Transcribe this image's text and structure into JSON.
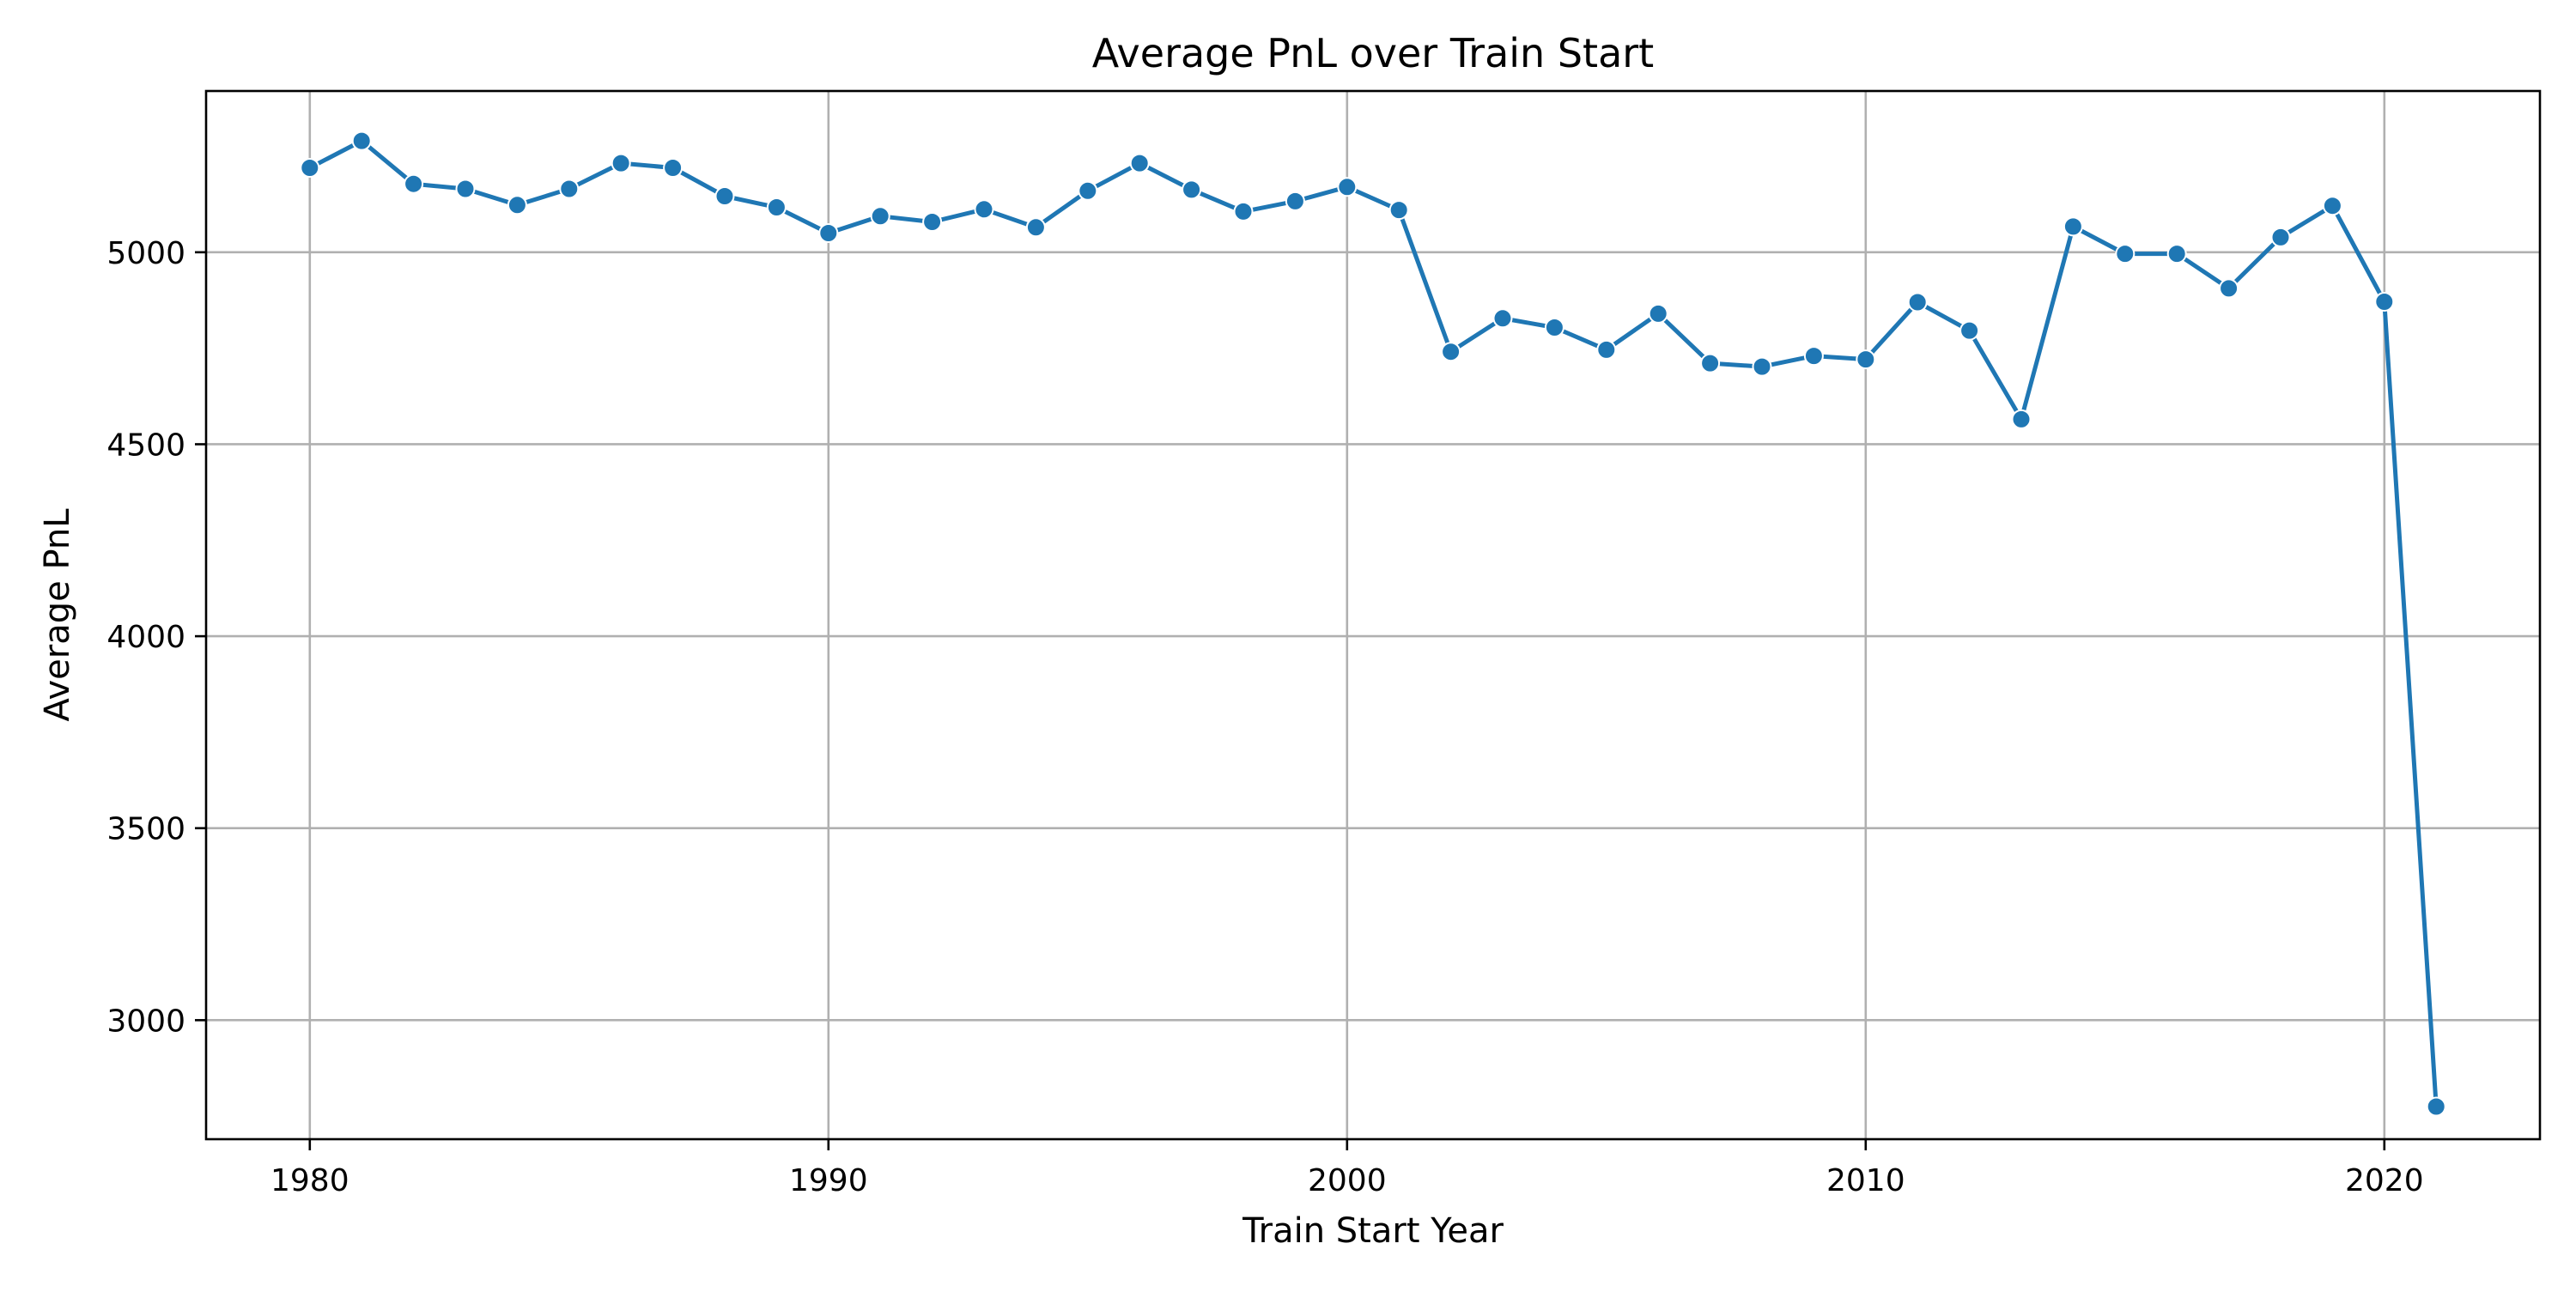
{
  "chart_data": {
    "type": "line",
    "title": "Average PnL over Train Start",
    "xlabel": "Train Start Year",
    "ylabel": "Average PnL",
    "xlim": [
      1978,
      2023
    ],
    "ylim": [
      2690,
      5420
    ],
    "x_ticks": [
      1980,
      1990,
      2000,
      2010,
      2020
    ],
    "y_ticks": [
      3000,
      3500,
      4000,
      4500,
      5000
    ],
    "grid": true,
    "legend": "none",
    "colors": {
      "line": "#1f77b4",
      "marker": "#1f77b4",
      "grid": "#b0b0b0"
    },
    "series": [
      {
        "x": [
          1980,
          1981,
          1982,
          1983,
          1984,
          1985,
          1986,
          1987,
          1988,
          1989,
          1990,
          1991,
          1992,
          1993,
          1994,
          1995,
          1996,
          1997,
          1998,
          1999,
          2000,
          2001,
          2002,
          2003,
          2004,
          2005,
          2006,
          2007,
          2008,
          2009,
          2010,
          2011,
          2012,
          2013,
          2014,
          2015,
          2016,
          2017,
          2018,
          2019,
          2020,
          2021
        ],
        "values": [
          5220,
          5290,
          5178,
          5165,
          5123,
          5165,
          5232,
          5220,
          5146,
          5117,
          5050,
          5094,
          5079,
          5112,
          5065,
          5160,
          5232,
          5163,
          5106,
          5133,
          5170,
          5110,
          4741,
          4828,
          4804,
          4746,
          4840,
          4711,
          4702,
          4730,
          4721,
          4870,
          4796,
          4565,
          5067,
          4996,
          4996,
          4906,
          5039,
          5121,
          4871,
          2775
        ]
      }
    ]
  }
}
